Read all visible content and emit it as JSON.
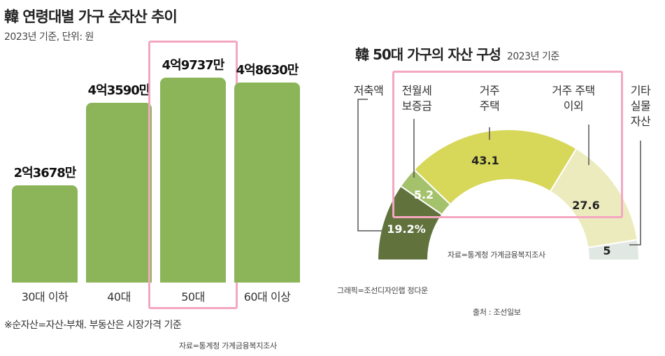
{
  "left": {
    "title": "韓 연령대별 가구 순자산 추이",
    "subtitle": "2023년 기준, 단위: 원",
    "footnote": "※순자산=자산-부채. 부동산은 시장가격 기준",
    "source": "자료=통계청 가계금융복지조사"
  },
  "right": {
    "title": "韓 50대 가구의 자산 구성",
    "title_sub": "2023년 기준",
    "source": "자료=통계청 가계금융복지조사",
    "graphic_credit": "그래픽=조선디자인랩 정다운",
    "origin": "출처 : 조선일보"
  },
  "chart_data": [
    {
      "type": "bar",
      "title": "韓 연령대별 가구 순자산 추이",
      "subtitle": "2023년 기준, 단위: 원",
      "categories": [
        "30대 이하",
        "40대",
        "50대",
        "60대 이상"
      ],
      "values": [
        23678,
        43590,
        49737,
        48630
      ],
      "value_labels": [
        "2억3678만",
        "4억3590만",
        "4억9737만",
        "4억8630만"
      ],
      "unit": "만원",
      "highlighted_category": "50대",
      "bar_color": "#8cb55a",
      "highlight_color": "#f4a7c1"
    },
    {
      "type": "pie",
      "shape": "semicircle",
      "title": "韓 50대 가구의 자산 구성",
      "subtitle": "2023년 기준",
      "slices": [
        {
          "label": "저축액",
          "label_lines": [
            "저축액"
          ],
          "value": 19.2,
          "value_label": "19.2%",
          "color": "#61723d"
        },
        {
          "label": "전월세 보증금",
          "label_lines": [
            "전월세",
            "보증금"
          ],
          "value": 5.2,
          "value_label": "5.2",
          "color": "#a4c16c"
        },
        {
          "label": "거주 주택",
          "label_lines": [
            "거주",
            "주택"
          ],
          "value": 43.1,
          "value_label": "43.1",
          "color": "#d7d75a"
        },
        {
          "label": "거주 주택 이외",
          "label_lines": [
            "거주 주택",
            "이외"
          ],
          "value": 27.6,
          "value_label": "27.6",
          "color": "#ecebbe"
        },
        {
          "label": "기타 실물자산",
          "label_lines": [
            "기타",
            "실물",
            "자산"
          ],
          "value": 5,
          "value_label": "5",
          "color": "#e1e8e3"
        }
      ],
      "highlighted_slices": [
        "전월세 보증금",
        "거주 주택",
        "거주 주택 이외"
      ],
      "highlight_color": "#f4a7c1"
    }
  ]
}
